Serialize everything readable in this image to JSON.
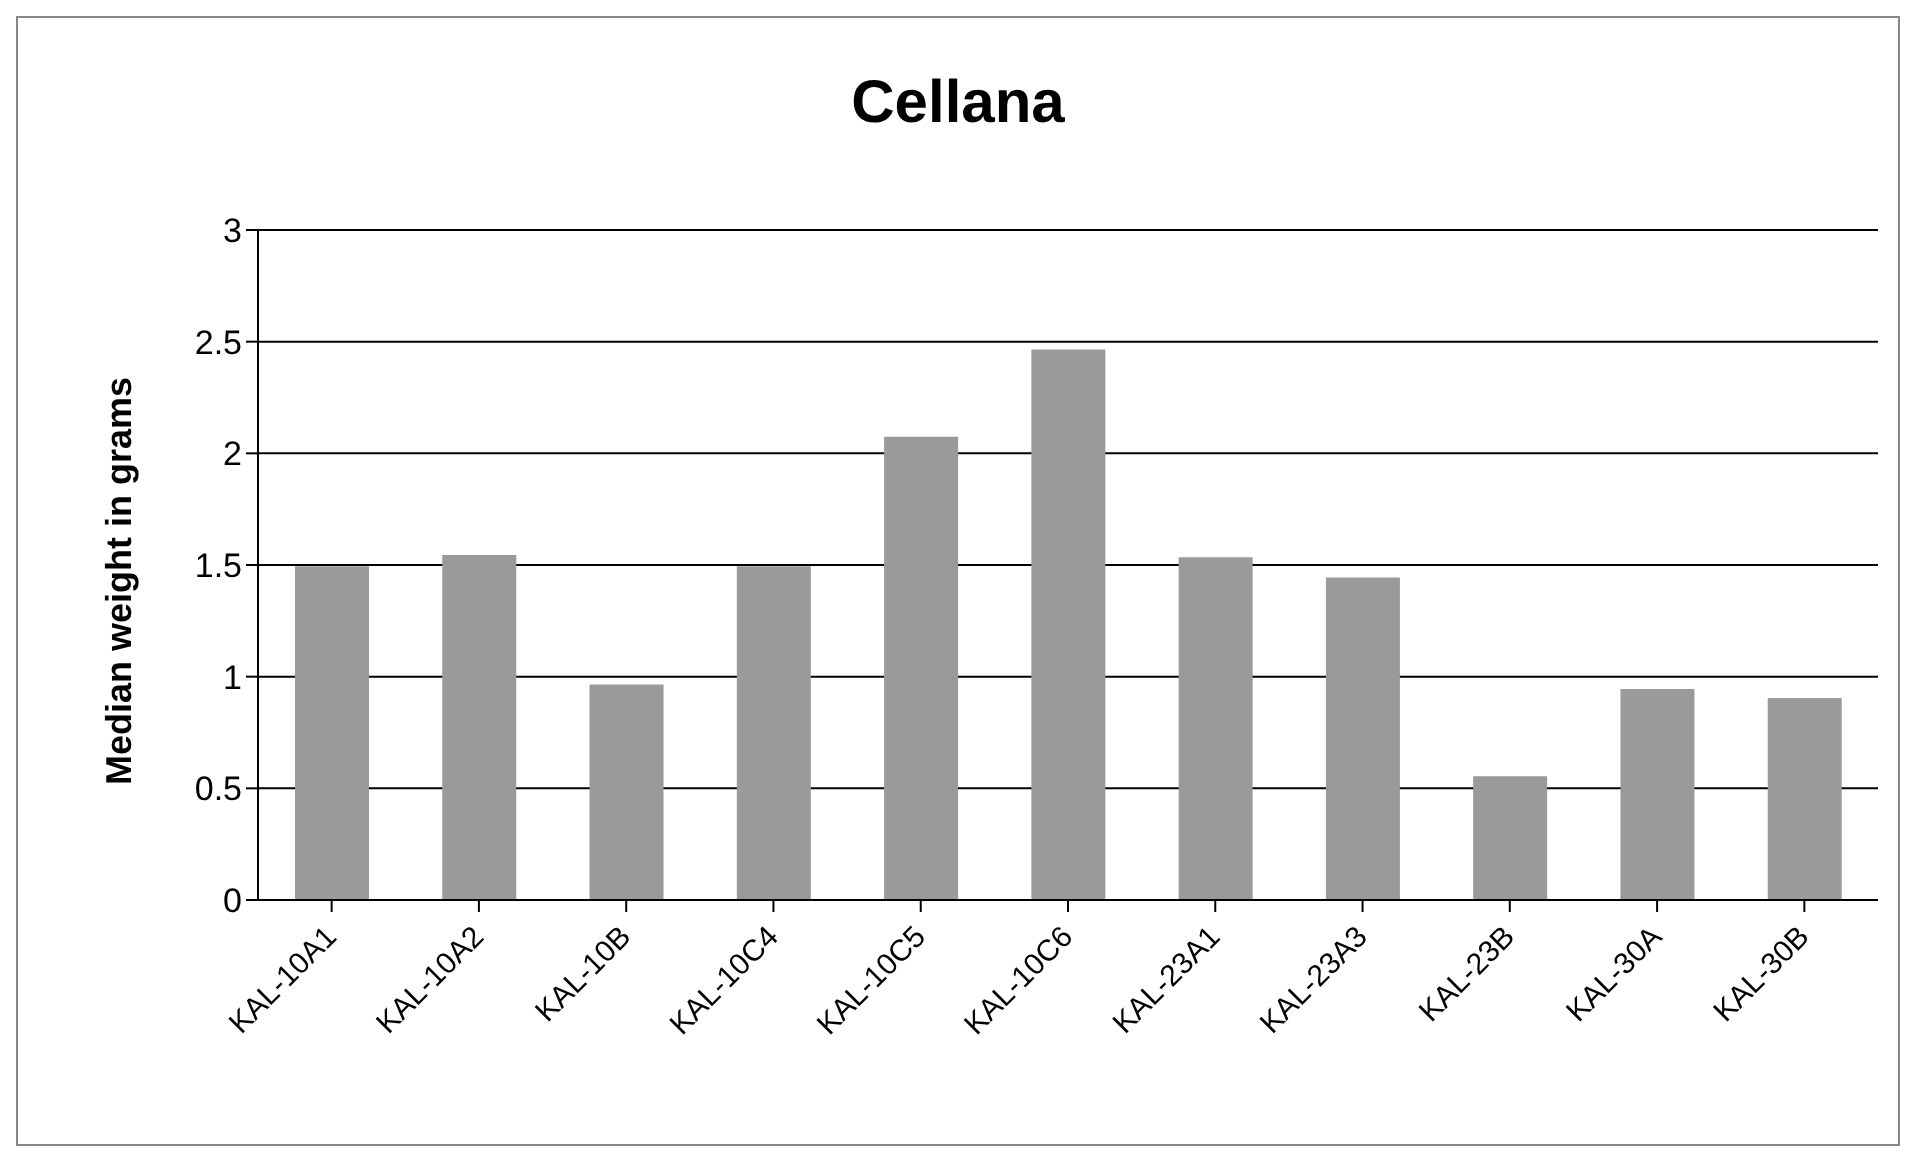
{
  "chart_data": {
    "type": "bar",
    "title": "Cellana",
    "ylabel": "Median weight in grams",
    "categories": [
      "KAL-10A1",
      "KAL-10A2",
      "KAL-10B",
      "KAL-10C4",
      "KAL-10C5",
      "KAL-10C6",
      "KAL-23A1",
      "KAL-23A3",
      "KAL-23B",
      "KAL-30A",
      "KAL-30B"
    ],
    "values": [
      1.49,
      1.54,
      0.96,
      1.49,
      2.07,
      2.46,
      1.53,
      1.44,
      0.55,
      0.94,
      0.9
    ],
    "color": "#9a9a9a",
    "ylim": [
      0,
      3
    ],
    "yticks": [
      0,
      0.5,
      1,
      1.5,
      2,
      2.5,
      3
    ],
    "grid": "y",
    "legend": false
  }
}
